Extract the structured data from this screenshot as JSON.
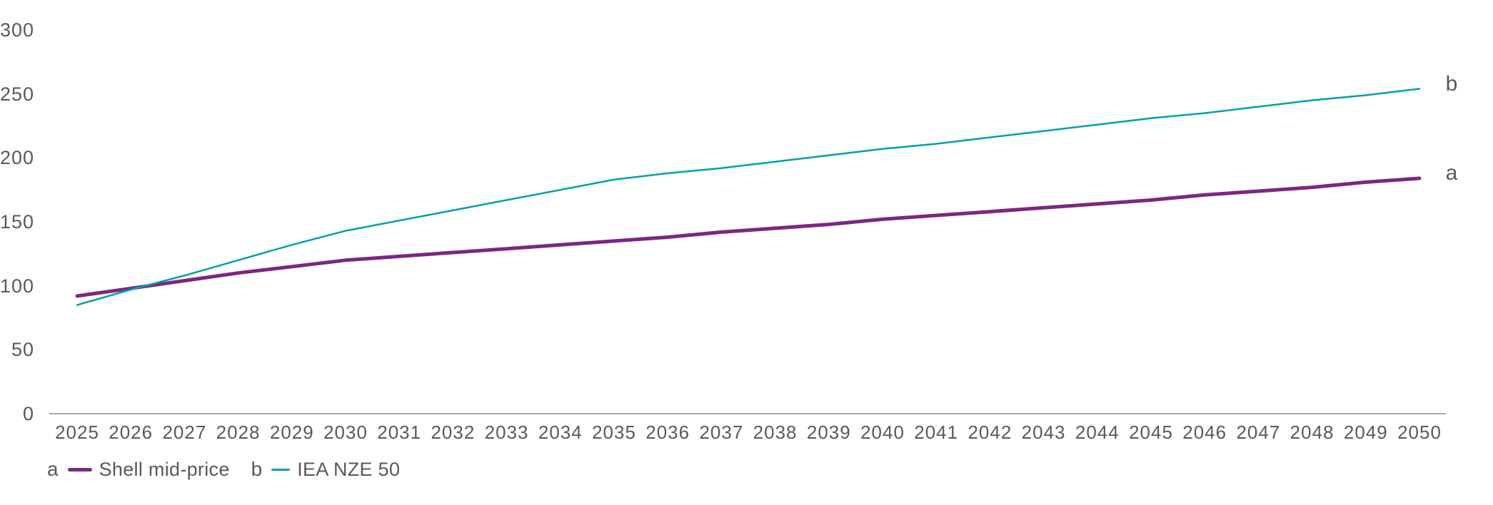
{
  "chart_data": {
    "type": "line",
    "title": "",
    "xlabel": "",
    "ylabel": "",
    "x": [
      2025,
      2026,
      2027,
      2028,
      2029,
      2030,
      2031,
      2032,
      2033,
      2034,
      2035,
      2036,
      2037,
      2038,
      2039,
      2040,
      2041,
      2042,
      2043,
      2044,
      2045,
      2046,
      2047,
      2048,
      2049,
      2050
    ],
    "y_ticks": [
      0,
      50,
      100,
      150,
      200,
      250,
      300
    ],
    "ylim": [
      0,
      300
    ],
    "grid": false,
    "legend_position": "bottom-left",
    "series": [
      {
        "letter": "a",
        "name": "Shell mid-price",
        "color": "#7D2682",
        "line_width": 5,
        "values": [
          92,
          98,
          104,
          110,
          115,
          120,
          123,
          126,
          129,
          132,
          135,
          138,
          142,
          145,
          148,
          152,
          155,
          158,
          161,
          164,
          167,
          171,
          174,
          177,
          181,
          184
        ]
      },
      {
        "letter": "b",
        "name": "IEA NZE 50",
        "color": "#00A1A8",
        "line_width": 2.5,
        "values": [
          85,
          97,
          108,
          120,
          132,
          143,
          151,
          159,
          167,
          175,
          183,
          188,
          192,
          197,
          202,
          207,
          211,
          216,
          221,
          226,
          231,
          235,
          240,
          245,
          249,
          254
        ]
      }
    ],
    "colors": {
      "text": "#58595B",
      "axis_line": "#ABABAB"
    }
  }
}
